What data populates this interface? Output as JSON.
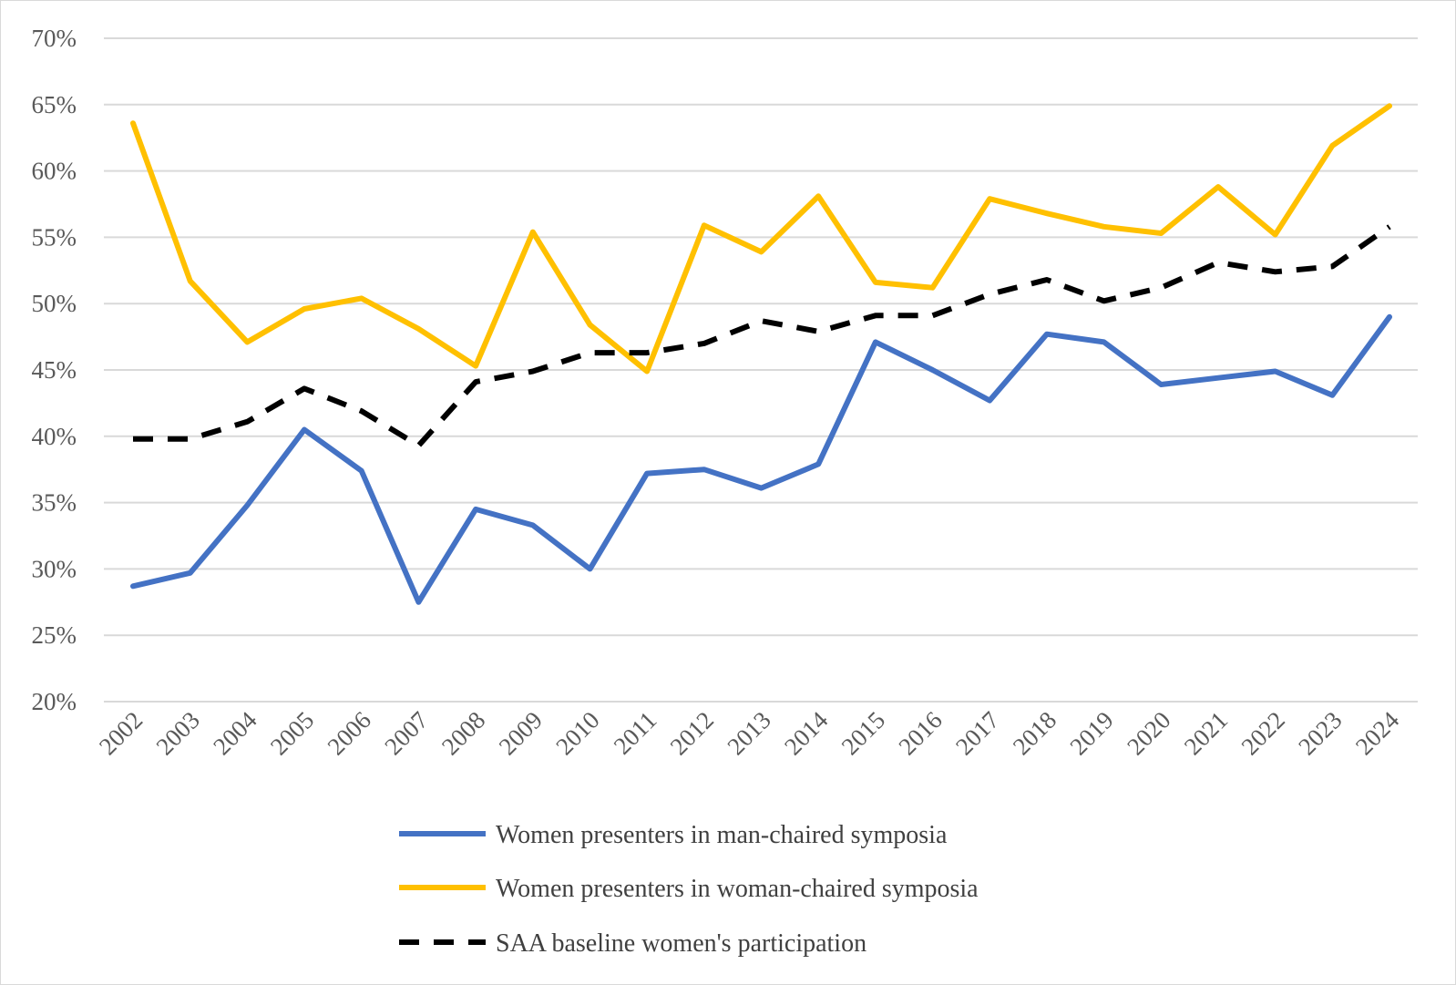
{
  "chart_data": {
    "type": "line",
    "title": "",
    "xlabel": "",
    "ylabel": "",
    "ylim": [
      20,
      70
    ],
    "y_ticks": [
      "20%",
      "25%",
      "30%",
      "35%",
      "40%",
      "45%",
      "50%",
      "55%",
      "60%",
      "65%",
      "70%"
    ],
    "y_tick_values": [
      20,
      25,
      30,
      35,
      40,
      45,
      50,
      55,
      60,
      65,
      70
    ],
    "grid": true,
    "legend_position": "bottom",
    "categories": [
      "2002",
      "2003",
      "2004",
      "2005",
      "2006",
      "2007",
      "2008",
      "2009",
      "2010",
      "2011",
      "2012",
      "2013",
      "2014",
      "2015",
      "2016",
      "2017",
      "2018",
      "2019",
      "2020",
      "2021",
      "2022",
      "2023",
      "2024"
    ],
    "series": [
      {
        "name": "Women presenters in man-chaired symposia",
        "color": "#4472c4",
        "style": "solid",
        "values": [
          28.7,
          29.7,
          34.8,
          40.5,
          37.4,
          27.5,
          34.5,
          33.3,
          30.0,
          37.2,
          37.5,
          36.1,
          37.9,
          47.1,
          45.0,
          42.7,
          47.7,
          47.1,
          43.9,
          44.4,
          44.9,
          43.1,
          49.0
        ]
      },
      {
        "name": "Women presenters in woman-chaired symposia",
        "color": "#ffc000",
        "style": "solid",
        "values": [
          63.6,
          51.7,
          47.1,
          49.6,
          50.4,
          48.1,
          45.3,
          55.4,
          48.4,
          44.9,
          55.9,
          53.9,
          58.1,
          51.6,
          51.2,
          57.9,
          56.8,
          55.8,
          55.3,
          58.8,
          55.2,
          61.9,
          64.9
        ]
      },
      {
        "name": "SAA baseline women's participation",
        "color": "#000000",
        "style": "dashed",
        "values": [
          39.8,
          39.8,
          41.1,
          43.6,
          41.9,
          39.3,
          44.1,
          44.9,
          46.3,
          46.3,
          47.0,
          48.7,
          47.9,
          49.1,
          49.1,
          50.7,
          51.8,
          50.2,
          51.2,
          53.1,
          52.4,
          52.8,
          55.8
        ]
      }
    ]
  }
}
